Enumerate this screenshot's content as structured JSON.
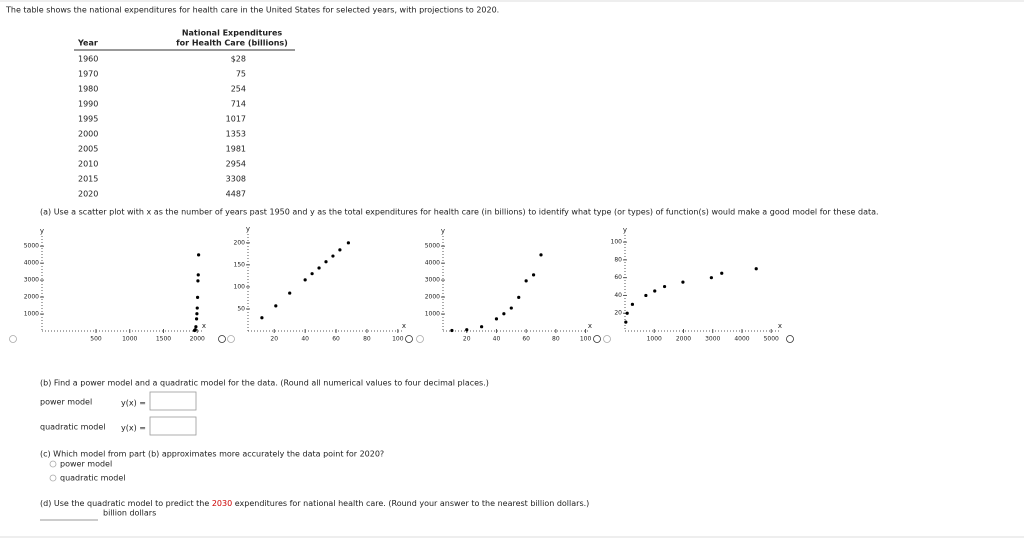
{
  "intro": "The table shows the national expenditures for health care in the United States for selected years, with projections to 2020.",
  "table": {
    "header_year": "Year",
    "header_expenditures": [
      "National Expenditures",
      "for Health Care (billions)"
    ],
    "rows": [
      [
        "1960",
        "$28"
      ],
      [
        "1970",
        "75"
      ],
      [
        "1980",
        "254"
      ],
      [
        "1990",
        "714"
      ],
      [
        "1995",
        "1017"
      ],
      [
        "2000",
        "1353"
      ],
      [
        "2005",
        "1981"
      ],
      [
        "2010",
        "2954"
      ],
      [
        "2015",
        "3308"
      ],
      [
        "2020",
        "4487"
      ]
    ]
  },
  "part_a": "(a) Use a scatter plot with x as the number of years past 1950 and y as the total expenditures for health care (in billions) to identify what type (or types) of function(s) would make a good model for these data.",
  "plots": [
    {
      "x_label": "x",
      "y_label": "y",
      "xlim": [
        -300,
        2100
      ],
      "ylim": [
        0,
        5600
      ],
      "xticks": [
        500,
        1000,
        1500,
        2000
      ],
      "yticks": [
        1000,
        2000,
        3000,
        4000,
        5000
      ],
      "points": {
        "x": [
          1960,
          1970,
          1980,
          1990,
          1995,
          2000,
          2005,
          2010,
          2015,
          2020
        ],
        "y": [
          28,
          75,
          254,
          714,
          1017,
          1353,
          1981,
          2954,
          3308,
          4487
        ]
      }
    },
    {
      "x_label": "x",
      "y_label": "y",
      "xlim": [
        3,
        104
      ],
      "ylim": [
        0,
        220
      ],
      "xticks": [
        20,
        40,
        60,
        80,
        100
      ],
      "yticks": [
        50,
        100,
        150,
        200
      ],
      "points": {
        "x": [
          12,
          21,
          30,
          40,
          44.5,
          49,
          53.5,
          58,
          62.5,
          68
        ],
        "y": [
          30,
          57,
          86,
          116,
          130,
          143,
          157,
          170,
          184,
          200
        ]
      }
    },
    {
      "x_label": "x",
      "y_label": "y",
      "xlim": [
        4,
        103
      ],
      "ylim": [
        0,
        5600
      ],
      "xticks": [
        20,
        40,
        60,
        80,
        100
      ],
      "yticks": [
        1000,
        2000,
        3000,
        4000,
        5000
      ],
      "points": {
        "x": [
          10,
          20,
          30,
          40,
          45,
          50,
          55,
          60,
          65,
          70
        ],
        "y": [
          28,
          75,
          254,
          714,
          1017,
          1353,
          1981,
          2954,
          3308,
          4487
        ]
      }
    },
    {
      "x_label": "x",
      "y_label": "y",
      "xlim": [
        0,
        5300
      ],
      "ylim": [
        0,
        108
      ],
      "xticks": [
        1000,
        2000,
        3000,
        4000,
        5000
      ],
      "yticks": [
        20,
        40,
        60,
        80,
        100
      ],
      "points": {
        "x": [
          28,
          75,
          254,
          714,
          1017,
          1353,
          1981,
          2954,
          3308,
          4487
        ],
        "y": [
          10,
          20,
          30,
          40,
          45,
          50,
          55,
          60,
          65,
          70
        ]
      }
    }
  ],
  "part_b": {
    "prompt": "(b) Find a power model and a quadratic model for the data. (Round all numerical values to four decimal places.)",
    "power_label": "power model",
    "power_input_label": "y(x) =",
    "quadratic_label": "quadratic model",
    "quadratic_input_label": "y(x) ="
  },
  "part_c": {
    "prompt": "(c) Which model from part (b) approximates more accurately the data point for 2020?",
    "options": [
      "power model",
      "quadratic model"
    ]
  },
  "part_d": {
    "prompt_parts": [
      "(d) Use the quadratic model to predict the ",
      "2030",
      " expenditures for national health care. (Round your answer to the nearest billion dollars.)"
    ],
    "unit": "billion dollars"
  }
}
